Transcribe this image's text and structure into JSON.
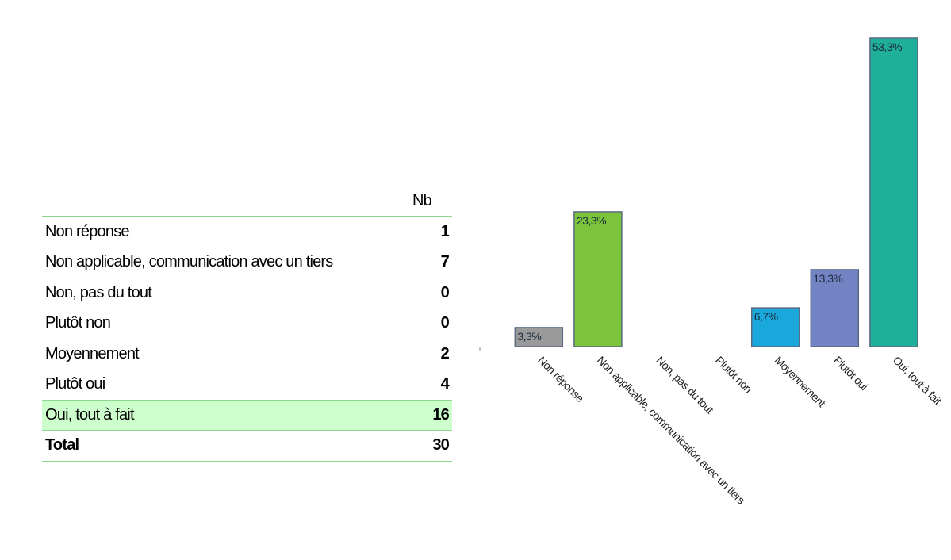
{
  "table": {
    "header": "Nb",
    "rows": [
      [
        "Non réponse",
        1
      ],
      [
        "Non applicable, communication avec un tiers",
        7
      ],
      [
        "Non, pas du tout",
        0
      ],
      [
        "Plutôt non",
        0
      ],
      [
        "Moyennement",
        2
      ],
      [
        "Plutôt oui",
        4
      ],
      [
        "Oui, tout à fait",
        16
      ]
    ],
    "total": [
      "Total",
      30
    ],
    "highlight_row": 6
  },
  "chart_data": {
    "type": "bar",
    "categories": [
      "Non réponse",
      "Non applicable, communication avec un tiers",
      "Non, pas du tout",
      "Plutôt non",
      "Moyennement",
      "Plutôt oui",
      "Oui, tout à fait"
    ],
    "values": [
      3.3,
      23.3,
      0,
      0,
      6.7,
      13.3,
      53.3
    ],
    "value_labels": [
      "3,3%",
      "23,3%",
      null,
      null,
      "6,7%",
      "13,3%",
      "53,3%"
    ],
    "colors": [
      "#9a9a9a",
      "#7cc43c",
      "#cccccc",
      "#cccccc",
      "#1aa8dc",
      "#7483c4",
      "#1fb09b"
    ]
  }
}
